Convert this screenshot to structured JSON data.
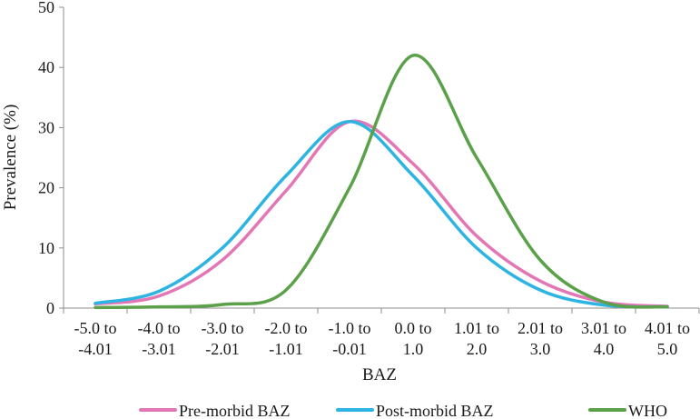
{
  "chart_data": {
    "type": "line",
    "title": "",
    "xlabel": "BAZ",
    "ylabel": "Prevalence (%)",
    "ylim": [
      0,
      50
    ],
    "yticks": [
      0,
      10,
      20,
      30,
      40,
      50
    ],
    "grid": false,
    "legend_position": "bottom",
    "categories": [
      [
        "-5.0 to",
        "-4.01"
      ],
      [
        "-4.0 to",
        "-3.01"
      ],
      [
        "-3.0 to",
        "-2.01"
      ],
      [
        "-2.0 to",
        "-1.01"
      ],
      [
        "-1.0 to",
        "-0.01"
      ],
      [
        "0.0 to",
        "1.0"
      ],
      [
        "1.01 to",
        "2.0"
      ],
      [
        "2.01 to",
        "3.0"
      ],
      [
        "3.01 to",
        "4.0"
      ],
      [
        "4.01 to",
        "5.0"
      ]
    ],
    "series": [
      {
        "name": "Pre-morbid BAZ",
        "color": "#E377B5",
        "values": [
          0.7,
          2.0,
          8.0,
          19.5,
          31.0,
          24.0,
          12.0,
          4.5,
          1.0,
          0.3
        ]
      },
      {
        "name": "Post-morbid BAZ",
        "color": "#2EB4E3",
        "values": [
          0.8,
          2.8,
          10.0,
          22.0,
          31.0,
          22.0,
          10.0,
          3.0,
          0.5,
          0.2
        ]
      },
      {
        "name": "WHO",
        "color": "#5BA14A",
        "values": [
          0.1,
          0.2,
          0.6,
          3.0,
          20.0,
          42.0,
          25.0,
          8.0,
          1.0,
          0.2
        ]
      }
    ]
  }
}
